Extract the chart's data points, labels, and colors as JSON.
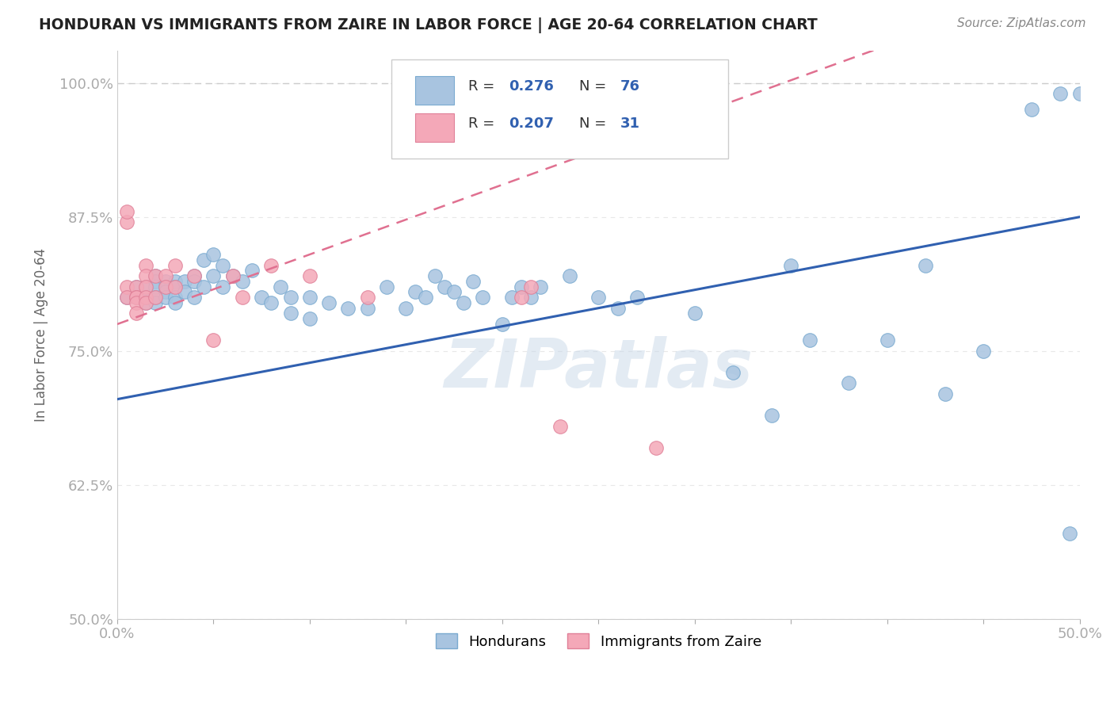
{
  "title": "HONDURAN VS IMMIGRANTS FROM ZAIRE IN LABOR FORCE | AGE 20-64 CORRELATION CHART",
  "source": "Source: ZipAtlas.com",
  "ylabel": "In Labor Force | Age 20-64",
  "xlim": [
    0.0,
    0.5
  ],
  "ylim": [
    0.5,
    1.03
  ],
  "xticks": [
    0.0,
    0.05,
    0.1,
    0.15,
    0.2,
    0.25,
    0.3,
    0.35,
    0.4,
    0.45,
    0.5
  ],
  "yticks": [
    0.5,
    0.625,
    0.75,
    0.875,
    1.0
  ],
  "yticklabels": [
    "50.0%",
    "62.5%",
    "75.0%",
    "87.5%",
    "100.0%"
  ],
  "blue_color": "#a8c4e0",
  "pink_color": "#f4a8b8",
  "blue_edge": "#7aaad0",
  "pink_edge": "#e08098",
  "trend_blue": "#3060b0",
  "trend_pink": "#e07090",
  "R_blue": 0.276,
  "N_blue": 76,
  "R_pink": 0.207,
  "N_pink": 31,
  "watermark_text": "ZIPatlas",
  "blue_x": [
    0.005,
    0.01,
    0.01,
    0.015,
    0.015,
    0.015,
    0.02,
    0.02,
    0.02,
    0.02,
    0.02,
    0.025,
    0.025,
    0.025,
    0.025,
    0.03,
    0.03,
    0.03,
    0.03,
    0.035,
    0.035,
    0.04,
    0.04,
    0.04,
    0.045,
    0.045,
    0.05,
    0.05,
    0.055,
    0.055,
    0.06,
    0.065,
    0.07,
    0.075,
    0.08,
    0.085,
    0.09,
    0.09,
    0.1,
    0.1,
    0.11,
    0.12,
    0.13,
    0.14,
    0.15,
    0.155,
    0.16,
    0.165,
    0.17,
    0.175,
    0.18,
    0.185,
    0.19,
    0.2,
    0.205,
    0.21,
    0.215,
    0.22,
    0.235,
    0.25,
    0.26,
    0.27,
    0.3,
    0.32,
    0.34,
    0.35,
    0.36,
    0.38,
    0.4,
    0.42,
    0.43,
    0.45,
    0.475,
    0.49,
    0.495,
    0.5
  ],
  "blue_y": [
    0.8,
    0.81,
    0.8,
    0.81,
    0.8,
    0.795,
    0.82,
    0.815,
    0.81,
    0.8,
    0.795,
    0.815,
    0.81,
    0.805,
    0.8,
    0.815,
    0.81,
    0.8,
    0.795,
    0.815,
    0.805,
    0.82,
    0.815,
    0.8,
    0.835,
    0.81,
    0.84,
    0.82,
    0.83,
    0.81,
    0.82,
    0.815,
    0.825,
    0.8,
    0.795,
    0.81,
    0.8,
    0.785,
    0.8,
    0.78,
    0.795,
    0.79,
    0.79,
    0.81,
    0.79,
    0.805,
    0.8,
    0.82,
    0.81,
    0.805,
    0.795,
    0.815,
    0.8,
    0.775,
    0.8,
    0.81,
    0.8,
    0.81,
    0.82,
    0.8,
    0.79,
    0.8,
    0.785,
    0.73,
    0.69,
    0.83,
    0.76,
    0.72,
    0.76,
    0.83,
    0.71,
    0.75,
    0.975,
    0.99,
    0.58,
    0.99
  ],
  "pink_x": [
    0.005,
    0.005,
    0.005,
    0.005,
    0.01,
    0.01,
    0.01,
    0.01,
    0.01,
    0.015,
    0.015,
    0.015,
    0.015,
    0.015,
    0.02,
    0.02,
    0.025,
    0.025,
    0.03,
    0.03,
    0.04,
    0.05,
    0.06,
    0.065,
    0.08,
    0.1,
    0.13,
    0.21,
    0.215,
    0.23,
    0.28
  ],
  "pink_y": [
    0.87,
    0.88,
    0.81,
    0.8,
    0.81,
    0.8,
    0.8,
    0.795,
    0.785,
    0.83,
    0.82,
    0.81,
    0.8,
    0.795,
    0.82,
    0.8,
    0.82,
    0.81,
    0.83,
    0.81,
    0.82,
    0.76,
    0.82,
    0.8,
    0.83,
    0.82,
    0.8,
    0.8,
    0.81,
    0.68,
    0.66
  ],
  "hline_y": 1.0,
  "hline_color": "#cccccc",
  "background_color": "#ffffff",
  "grid_color": "#e8e8e8",
  "grid_style": "--"
}
